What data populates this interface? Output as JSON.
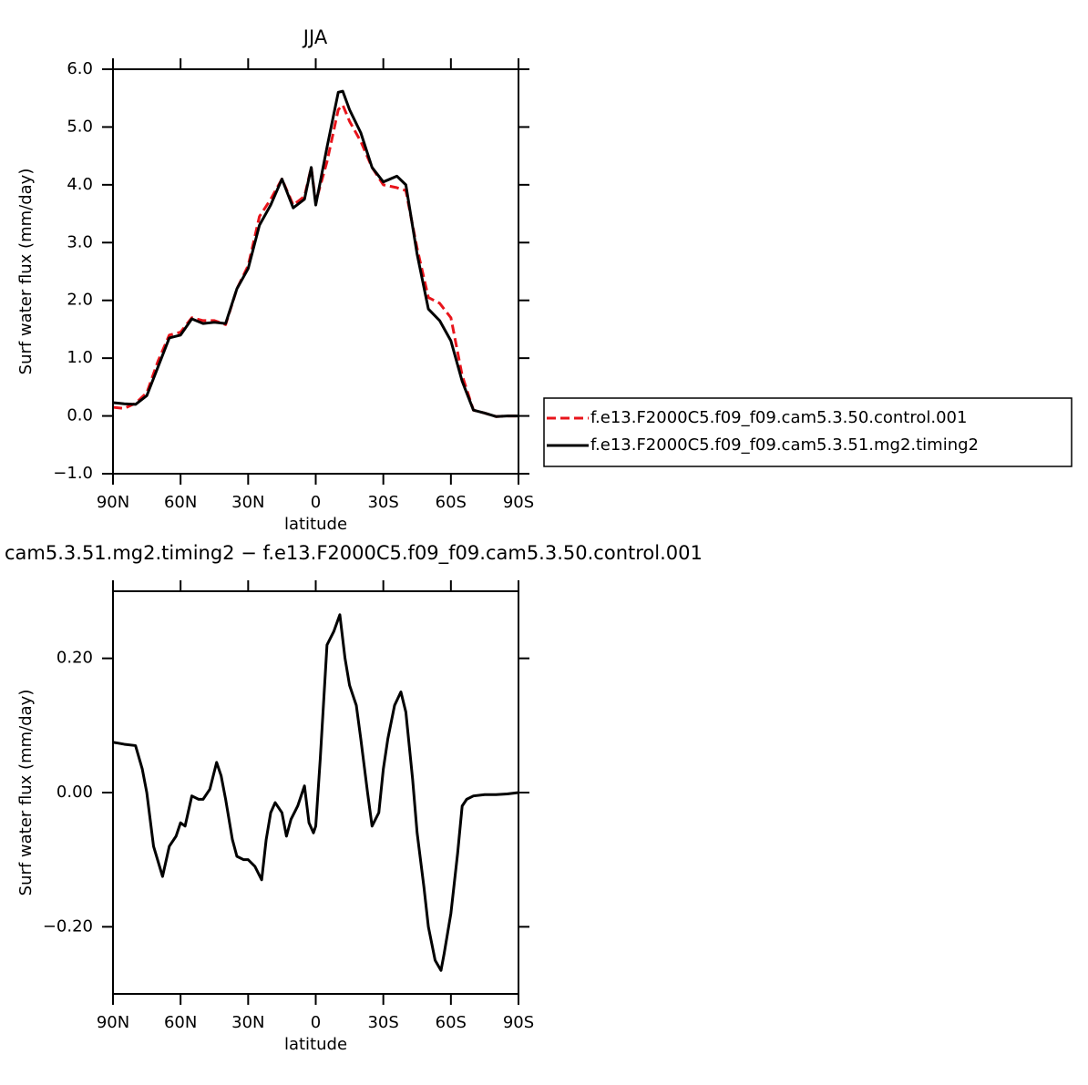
{
  "chart_data": [
    {
      "type": "line",
      "title": "JJA",
      "x_label": "latitude",
      "y_label": "Surf  water flux (mm/day)",
      "xlim": [
        90,
        -90
      ],
      "ylim": [
        -1,
        6
      ],
      "xticks": [
        {
          "value": 90,
          "label": "90N"
        },
        {
          "value": 60,
          "label": "60N"
        },
        {
          "value": 30,
          "label": "30N"
        },
        0,
        {
          "value": -30,
          "label": "30S"
        },
        {
          "value": -60,
          "label": "60S"
        },
        {
          "value": -90,
          "label": "90S"
        }
      ],
      "yticks": [
        {
          "value": -1,
          "label": "−1.0"
        },
        {
          "value": 0,
          "label": "0.0"
        },
        {
          "value": 1,
          "label": "1.0"
        },
        {
          "value": 2,
          "label": "2.0"
        },
        {
          "value": 3,
          "label": "3.0"
        },
        {
          "value": 4,
          "label": "4.0"
        },
        {
          "value": 5,
          "label": "5.0"
        },
        {
          "value": 6,
          "label": "6.0"
        }
      ],
      "x": [
        90,
        85,
        80,
        75,
        70,
        65,
        60,
        55,
        50,
        45,
        40,
        35,
        30,
        25,
        20,
        15,
        10,
        5,
        2,
        0,
        -5,
        -10,
        -12,
        -15,
        -20,
        -25,
        -30,
        -36,
        -40,
        -45,
        -50,
        -55,
        -60,
        -65,
        -70,
        -75,
        -80,
        -85,
        -90
      ],
      "series": [
        {
          "name": "f.e13.F2000C5.f09_f09.cam5.3.50.control.001",
          "color": "#e8141b",
          "linestyle": "dashed",
          "values": [
            0.15,
            0.13,
            0.22,
            0.4,
            0.95,
            1.4,
            1.45,
            1.7,
            1.65,
            1.65,
            1.58,
            2.2,
            2.6,
            3.45,
            3.75,
            4.1,
            3.65,
            3.8,
            4.3,
            3.7,
            4.4,
            5.3,
            5.38,
            5.1,
            4.75,
            4.3,
            4.0,
            3.95,
            3.9,
            2.9,
            2.05,
            1.95,
            1.7,
            0.7,
            0.1,
            0.05,
            -0.01,
            0.0,
            0.0
          ]
        },
        {
          "name": "f.e13.F2000C5.f09_f09.cam5.3.51.mg2.timing2",
          "color": "#000000",
          "linestyle": "solid",
          "values": [
            0.23,
            0.21,
            0.2,
            0.35,
            0.85,
            1.35,
            1.4,
            1.68,
            1.6,
            1.62,
            1.6,
            2.2,
            2.55,
            3.3,
            3.65,
            4.1,
            3.6,
            3.75,
            4.3,
            3.65,
            4.65,
            5.6,
            5.62,
            5.3,
            4.9,
            4.3,
            4.05,
            4.15,
            4.0,
            2.8,
            1.85,
            1.65,
            1.3,
            0.6,
            0.1,
            0.05,
            -0.01,
            0.0,
            0.0
          ]
        }
      ]
    },
    {
      "type": "line",
      "title": "cam5.3.51.mg2.timing2 − f.e13.F2000C5.f09_f09.cam5.3.50.control.001",
      "x_label": "latitude",
      "y_label": "Surf  water flux (mm/day)",
      "xlim": [
        90,
        -90
      ],
      "ylim": [
        -0.3,
        0.3
      ],
      "xticks": [
        {
          "value": 90,
          "label": "90N"
        },
        {
          "value": 60,
          "label": "60N"
        },
        {
          "value": 30,
          "label": "30N"
        },
        0,
        {
          "value": -30,
          "label": "30S"
        },
        {
          "value": -60,
          "label": "60S"
        },
        {
          "value": -90,
          "label": "90S"
        }
      ],
      "yticks": [
        {
          "value": -0.2,
          "label": "−0.20"
        },
        {
          "value": 0,
          "label": "0.00"
        },
        {
          "value": 0.2,
          "label": "0.20"
        }
      ],
      "x": [
        90,
        85,
        80,
        77,
        75,
        72,
        68,
        65,
        62,
        60,
        58,
        55,
        52,
        50,
        47,
        44,
        42,
        40,
        37,
        35,
        32,
        30,
        27,
        24,
        22,
        20,
        18,
        15,
        13,
        11,
        8,
        5,
        3,
        1,
        0,
        -2,
        -5,
        -8,
        -10.7,
        -13,
        -15,
        -18,
        -20,
        -23,
        -25,
        -28,
        -30,
        -32,
        -35,
        -37.8,
        -40,
        -43,
        -45,
        -48,
        -50,
        -53,
        -55.6,
        -57,
        -60,
        -63,
        -65,
        -67,
        -70,
        -75,
        -80,
        -85,
        -90
      ],
      "series": [
        {
          "color": "#000000",
          "linestyle": "solid",
          "values": [
            0.075,
            0.072,
            0.07,
            0.035,
            0.0,
            -0.08,
            -0.125,
            -0.08,
            -0.065,
            -0.045,
            -0.05,
            -0.005,
            -0.01,
            -0.01,
            0.005,
            0.045,
            0.025,
            -0.01,
            -0.07,
            -0.095,
            -0.1,
            -0.1,
            -0.11,
            -0.13,
            -0.07,
            -0.03,
            -0.015,
            -0.03,
            -0.065,
            -0.04,
            -0.02,
            0.01,
            -0.045,
            -0.06,
            -0.05,
            0.05,
            0.22,
            0.24,
            0.265,
            0.2,
            0.16,
            0.13,
            0.08,
            0.0,
            -0.05,
            -0.03,
            0.035,
            0.08,
            0.13,
            0.15,
            0.12,
            0.02,
            -0.06,
            -0.14,
            -0.2,
            -0.25,
            -0.265,
            -0.24,
            -0.18,
            -0.09,
            -0.02,
            -0.01,
            -0.005,
            -0.003,
            -0.003,
            -0.002,
            0.0
          ]
        }
      ]
    }
  ]
}
